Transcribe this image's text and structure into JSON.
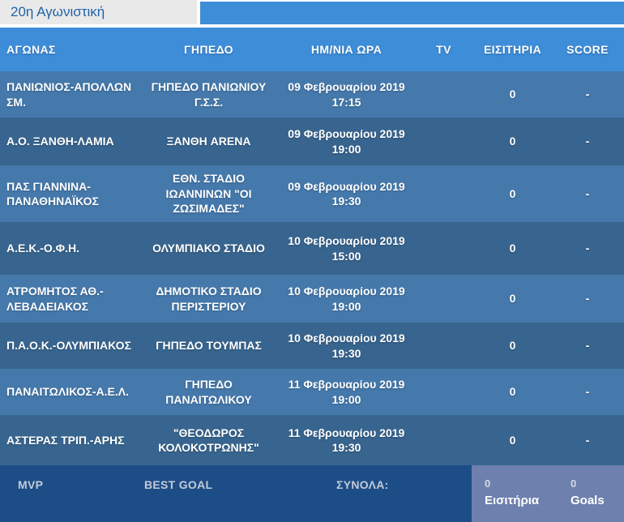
{
  "tab": {
    "label": "20η Αγωνιστική"
  },
  "table": {
    "columns": {
      "match": "ΑΓΩΝΑΣ",
      "venue": "ΓΗΠΕΔΟ",
      "datetime": "ΗΜ/ΝΙΑ ΩΡΑ",
      "tv": "TV",
      "tickets": "ΕΙΣΙΤΗΡΙΑ",
      "score": "SCORE"
    },
    "rows": [
      {
        "match": "ΠΑΝΙΩΝΙΟΣ-ΑΠΟΛΛΩΝ ΣΜ.",
        "venue": "ΓΗΠΕΔΟ ΠΑΝΙΩΝΙΟΥ Γ.Σ.Σ.",
        "date": "09 Φεβρουαρίου 2019",
        "time": "17:15",
        "tv": "",
        "tickets": "0",
        "score": "-"
      },
      {
        "match": "Α.Ο. ΞΑΝΘΗ-ΛΑΜΙΑ",
        "venue": "ΞΑΝΘΗ ARENA",
        "date": "09 Φεβρουαρίου 2019",
        "time": "19:00",
        "tv": "",
        "tickets": "0",
        "score": "-"
      },
      {
        "match": "ΠΑΣ ΓΙΑΝΝΙΝΑ-ΠΑΝΑΘΗΝΑΪΚΟΣ",
        "venue": "ΕΘΝ. ΣΤΑΔΙΟ ΙΩΑΝΝΙΝΩΝ \"ΟΙ ΖΩΣΙΜΑΔΕΣ\"",
        "date": "09 Φεβρουαρίου 2019",
        "time": "19:30",
        "tv": "",
        "tickets": "0",
        "score": "-"
      },
      {
        "match": "Α.Ε.Κ.-Ο.Φ.Η.",
        "venue": "ΟΛΥΜΠΙΑΚΟ ΣΤΑΔΙΟ",
        "date": "10 Φεβρουαρίου 2019",
        "time": "15:00",
        "tv": "",
        "tickets": "0",
        "score": "-"
      },
      {
        "match": "ΑΤΡΟΜΗΤΟΣ ΑΘ.-ΛΕΒΑΔΕΙΑΚΟΣ",
        "venue": "ΔΗΜΟΤΙΚΟ ΣΤΑΔΙΟ ΠΕΡΙΣΤΕΡΙΟΥ",
        "date": "10 Φεβρουαρίου 2019",
        "time": "19:00",
        "tv": "",
        "tickets": "0",
        "score": "-"
      },
      {
        "match": "Π.Α.Ο.Κ.-ΟΛΥΜΠΙΑΚΟΣ",
        "venue": "ΓΗΠΕΔΟ ΤΟΥΜΠΑΣ",
        "date": "10 Φεβρουαρίου 2019",
        "time": "19:30",
        "tv": "",
        "tickets": "0",
        "score": "-"
      },
      {
        "match": "ΠΑΝΑΙΤΩΛΙΚΟΣ-Α.Ε.Λ.",
        "venue": "ΓΗΠΕΔΟ ΠΑΝΑΙΤΩΛΙΚΟΥ",
        "date": "11 Φεβρουαρίου 2019",
        "time": "19:00",
        "tv": "",
        "tickets": "0",
        "score": "-"
      },
      {
        "match": "ΑΣΤΕΡΑΣ ΤΡΙΠ.-ΑΡΗΣ",
        "venue": "\"ΘΕΟΔΩΡΟΣ ΚΟΛΟΚΟΤΡΩΝΗΣ\"",
        "date": "11 Φεβρουαρίου 2019",
        "time": "19:30",
        "tv": "",
        "tickets": "0",
        "score": "-"
      }
    ]
  },
  "footer": {
    "mvp_label": "MVP",
    "best_goal_label": "BEST GOAL",
    "totals_label": "ΣΥΝΟΛΑ:",
    "tickets_total": "0",
    "tickets_label": "Εισιτήρια",
    "goals_total": "0",
    "goals_label": "Goals"
  },
  "colors": {
    "header_blue": "#3e8dd8",
    "row_light": "#4579ac",
    "row_dark": "#38658f",
    "footer_navy": "#1d4d86",
    "footer_slate": "#6e80ad",
    "tab_bg": "#e9e9e9",
    "tab_text": "#2163a8"
  }
}
